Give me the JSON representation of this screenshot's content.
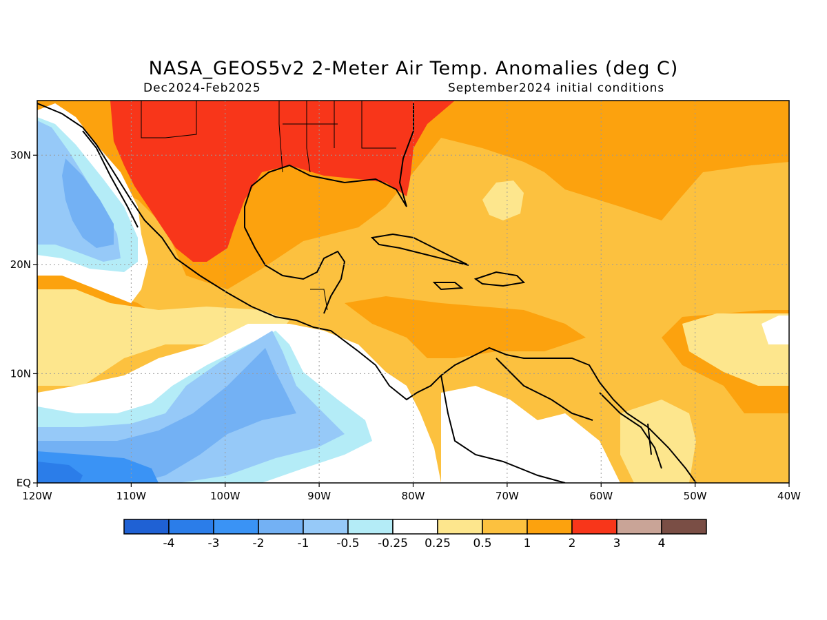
{
  "title": "NASA_GEOS5v2 2-Meter Air Temp. Anomalies (deg C)",
  "subtitle_left": "Dec2024-Feb2025",
  "subtitle_right": "September2024 initial conditions",
  "map": {
    "lon_range": [
      -120,
      -40
    ],
    "lat_range": [
      0,
      35
    ],
    "x_ticks": [
      {
        "value": -120,
        "label": "120W"
      },
      {
        "value": -110,
        "label": "110W"
      },
      {
        "value": -100,
        "label": "100W"
      },
      {
        "value": -90,
        "label": "90W"
      },
      {
        "value": -80,
        "label": "80W"
      },
      {
        "value": -70,
        "label": "70W"
      },
      {
        "value": -60,
        "label": "60W"
      },
      {
        "value": -50,
        "label": "50W"
      },
      {
        "value": -40,
        "label": "40W"
      }
    ],
    "y_ticks": [
      {
        "value": 0,
        "label": "EQ"
      },
      {
        "value": 10,
        "label": "10N"
      },
      {
        "value": 20,
        "label": "20N"
      },
      {
        "value": 30,
        "label": "30N"
      }
    ],
    "grid": "dotted"
  },
  "colorbar": {
    "colors": [
      "#1f61d4",
      "#2b7de9",
      "#3a93f5",
      "#73b1f4",
      "#96c9f8",
      "#b4ecf7",
      "#ffffff",
      "#fde68d",
      "#fcc13f",
      "#fca20e",
      "#f8361a",
      "#c9a497",
      "#7a4e45"
    ],
    "labels": [
      "-4",
      "-3",
      "-2",
      "-1",
      "-0.5",
      "-0.25",
      "0.25",
      "0.5",
      "1",
      "2",
      "3",
      "4"
    ]
  }
}
